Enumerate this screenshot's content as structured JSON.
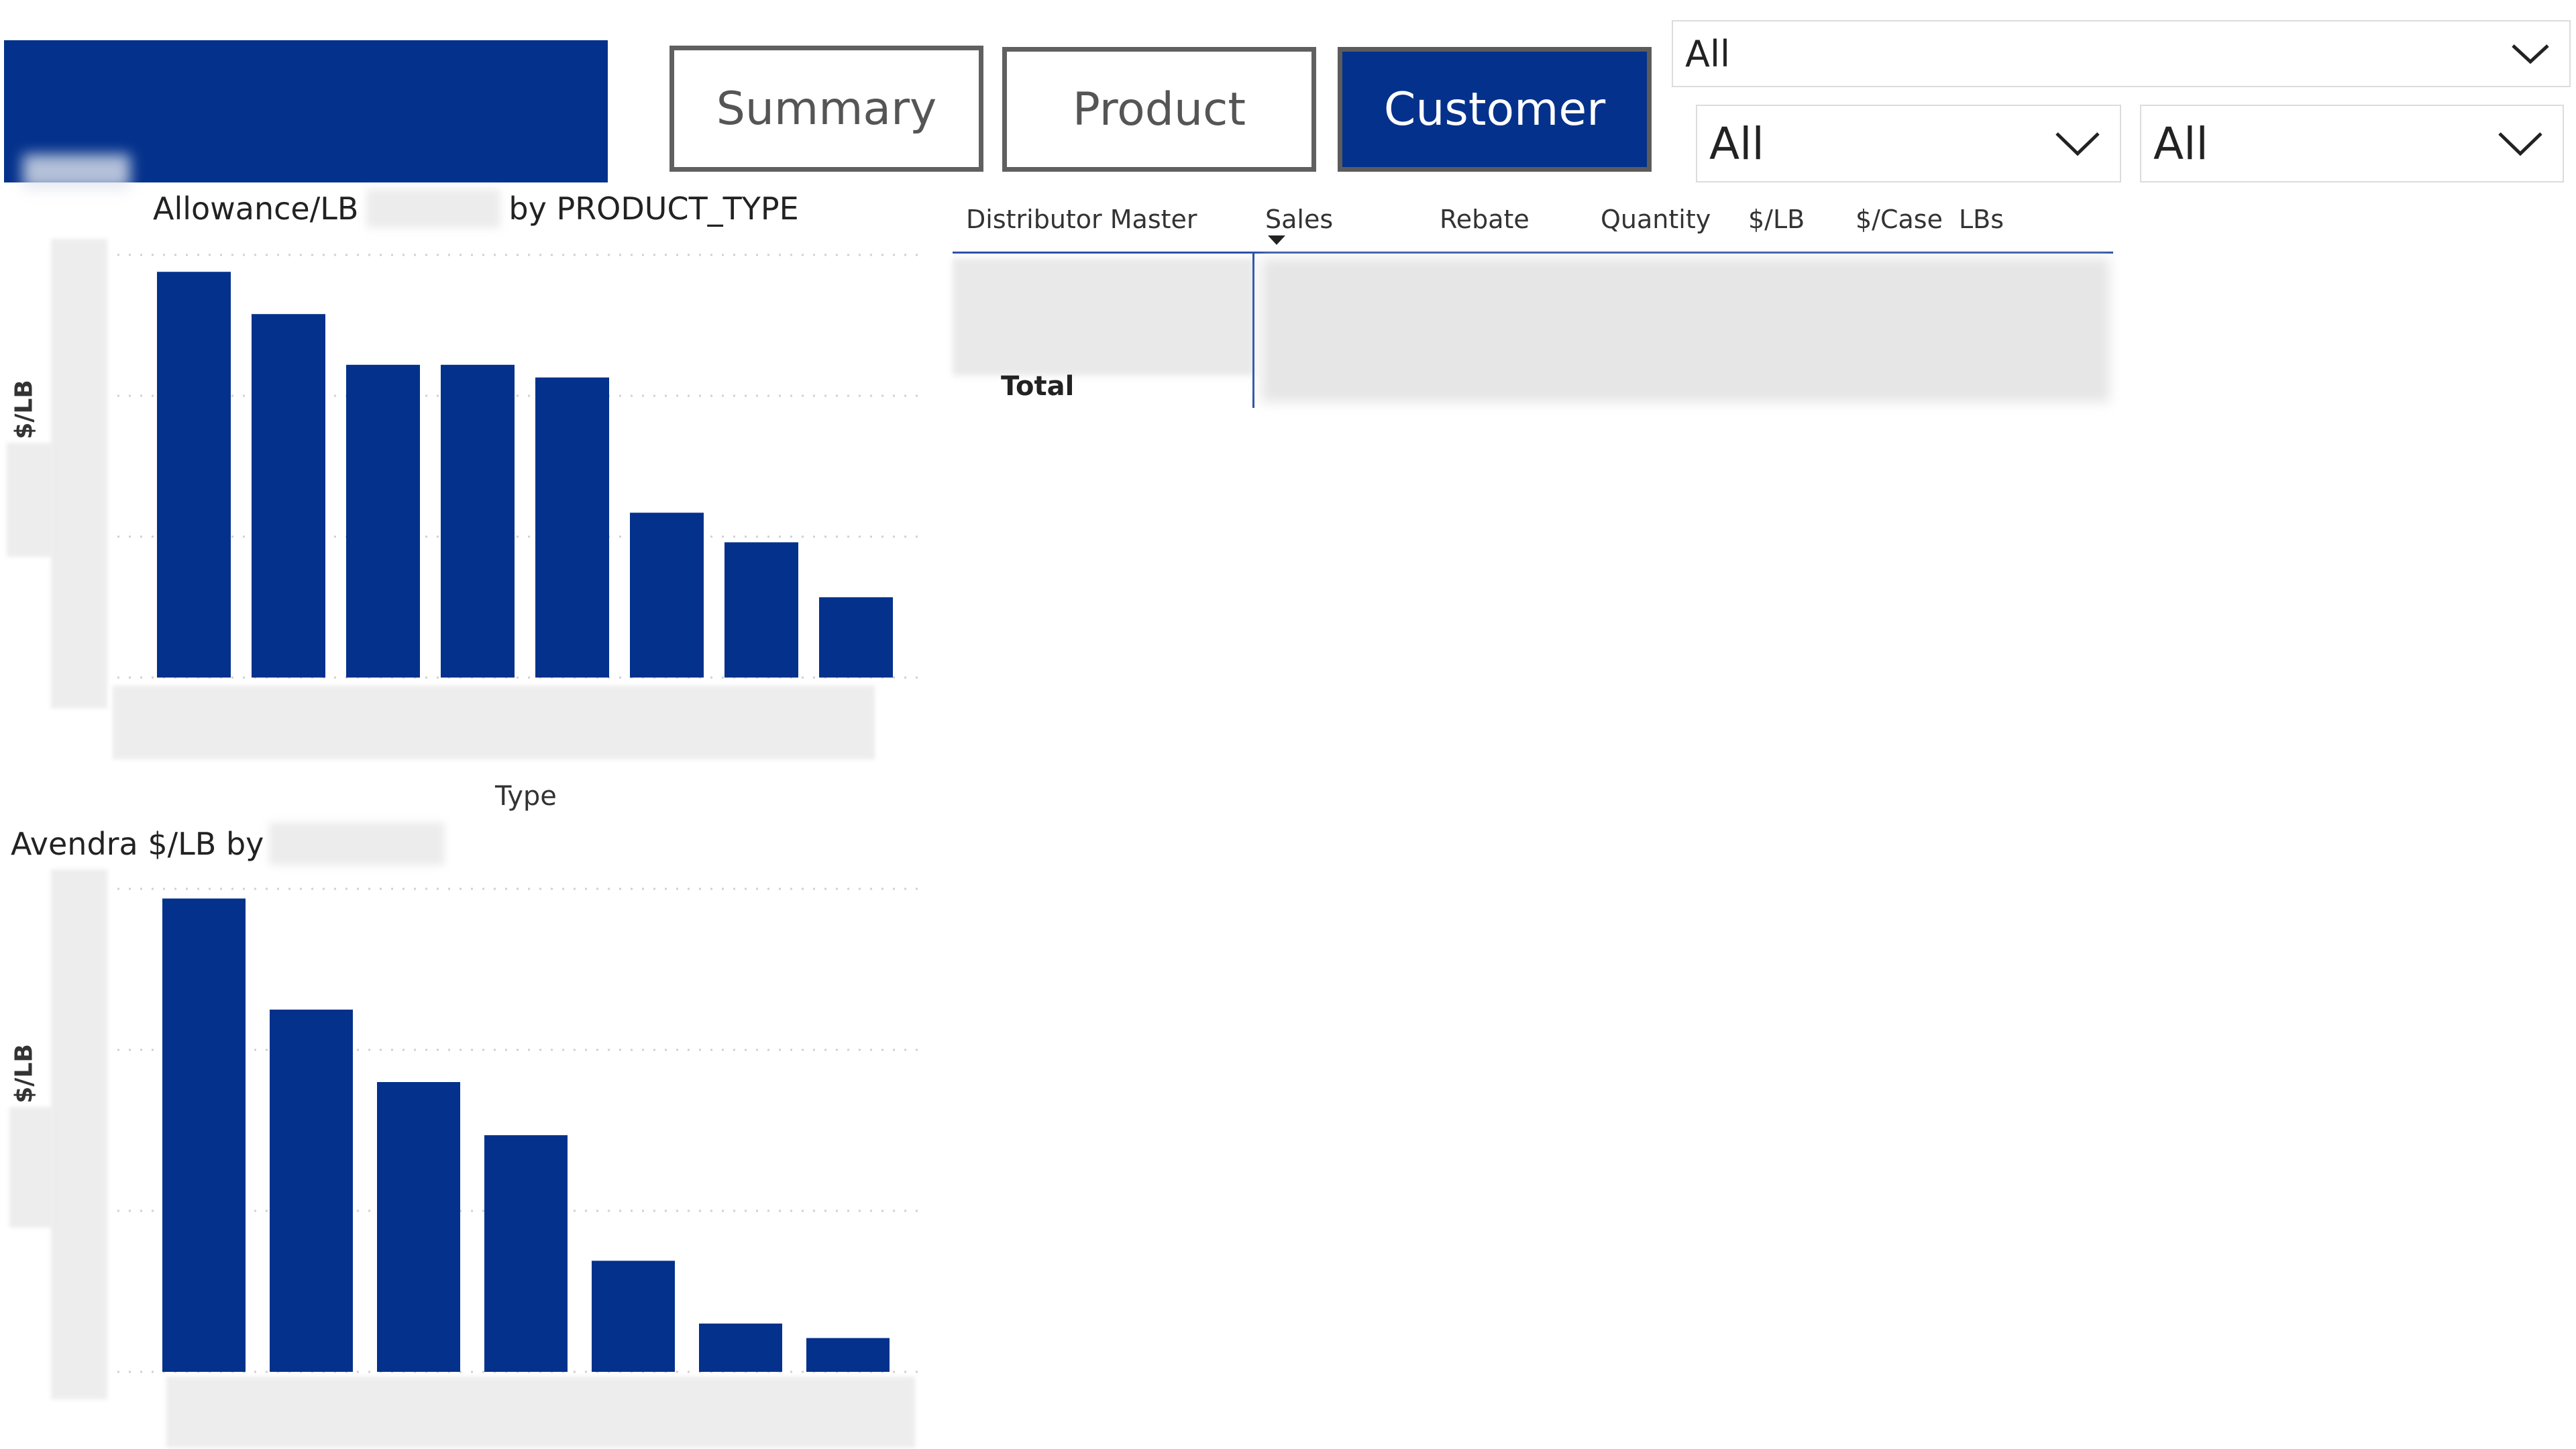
{
  "nav": {
    "summary_label": "Summary",
    "product_label": "Product",
    "customer_label": "Customer",
    "active": "Customer"
  },
  "slicers": [
    {
      "value": "All"
    },
    {
      "value": "All"
    },
    {
      "value": "All"
    }
  ],
  "icons": {
    "dropdown": "chevron-down-icon",
    "sort": "sort-descending-icon"
  },
  "colors": {
    "accent": "#03318c",
    "bar": "#03318c",
    "grid": "#d0d0d0"
  },
  "table": {
    "columns": [
      "Distributor Master",
      "Sales",
      "Rebate",
      "Quantity",
      "$/LB",
      "$/Case",
      "LBs"
    ],
    "total_label": "Total",
    "sorted_column": "Sales"
  },
  "chart_data": [
    {
      "type": "bar",
      "title_part1": "Allowance/LB",
      "title_part2": "by PRODUCT_TYPE",
      "xlabel": "Type",
      "ylabel": "$/LB",
      "ylim": [
        0,
        1
      ],
      "values": [
        0.96,
        0.86,
        0.74,
        0.74,
        0.71,
        0.39,
        0.32,
        0.19
      ],
      "grid": true
    },
    {
      "type": "bar",
      "title_part1": "Avendra $/LB by",
      "xlabel": "",
      "ylabel": "$/LB",
      "ylim": [
        0,
        1
      ],
      "values": [
        0.98,
        0.75,
        0.6,
        0.49,
        0.23,
        0.1,
        0.07
      ],
      "grid": true
    }
  ]
}
